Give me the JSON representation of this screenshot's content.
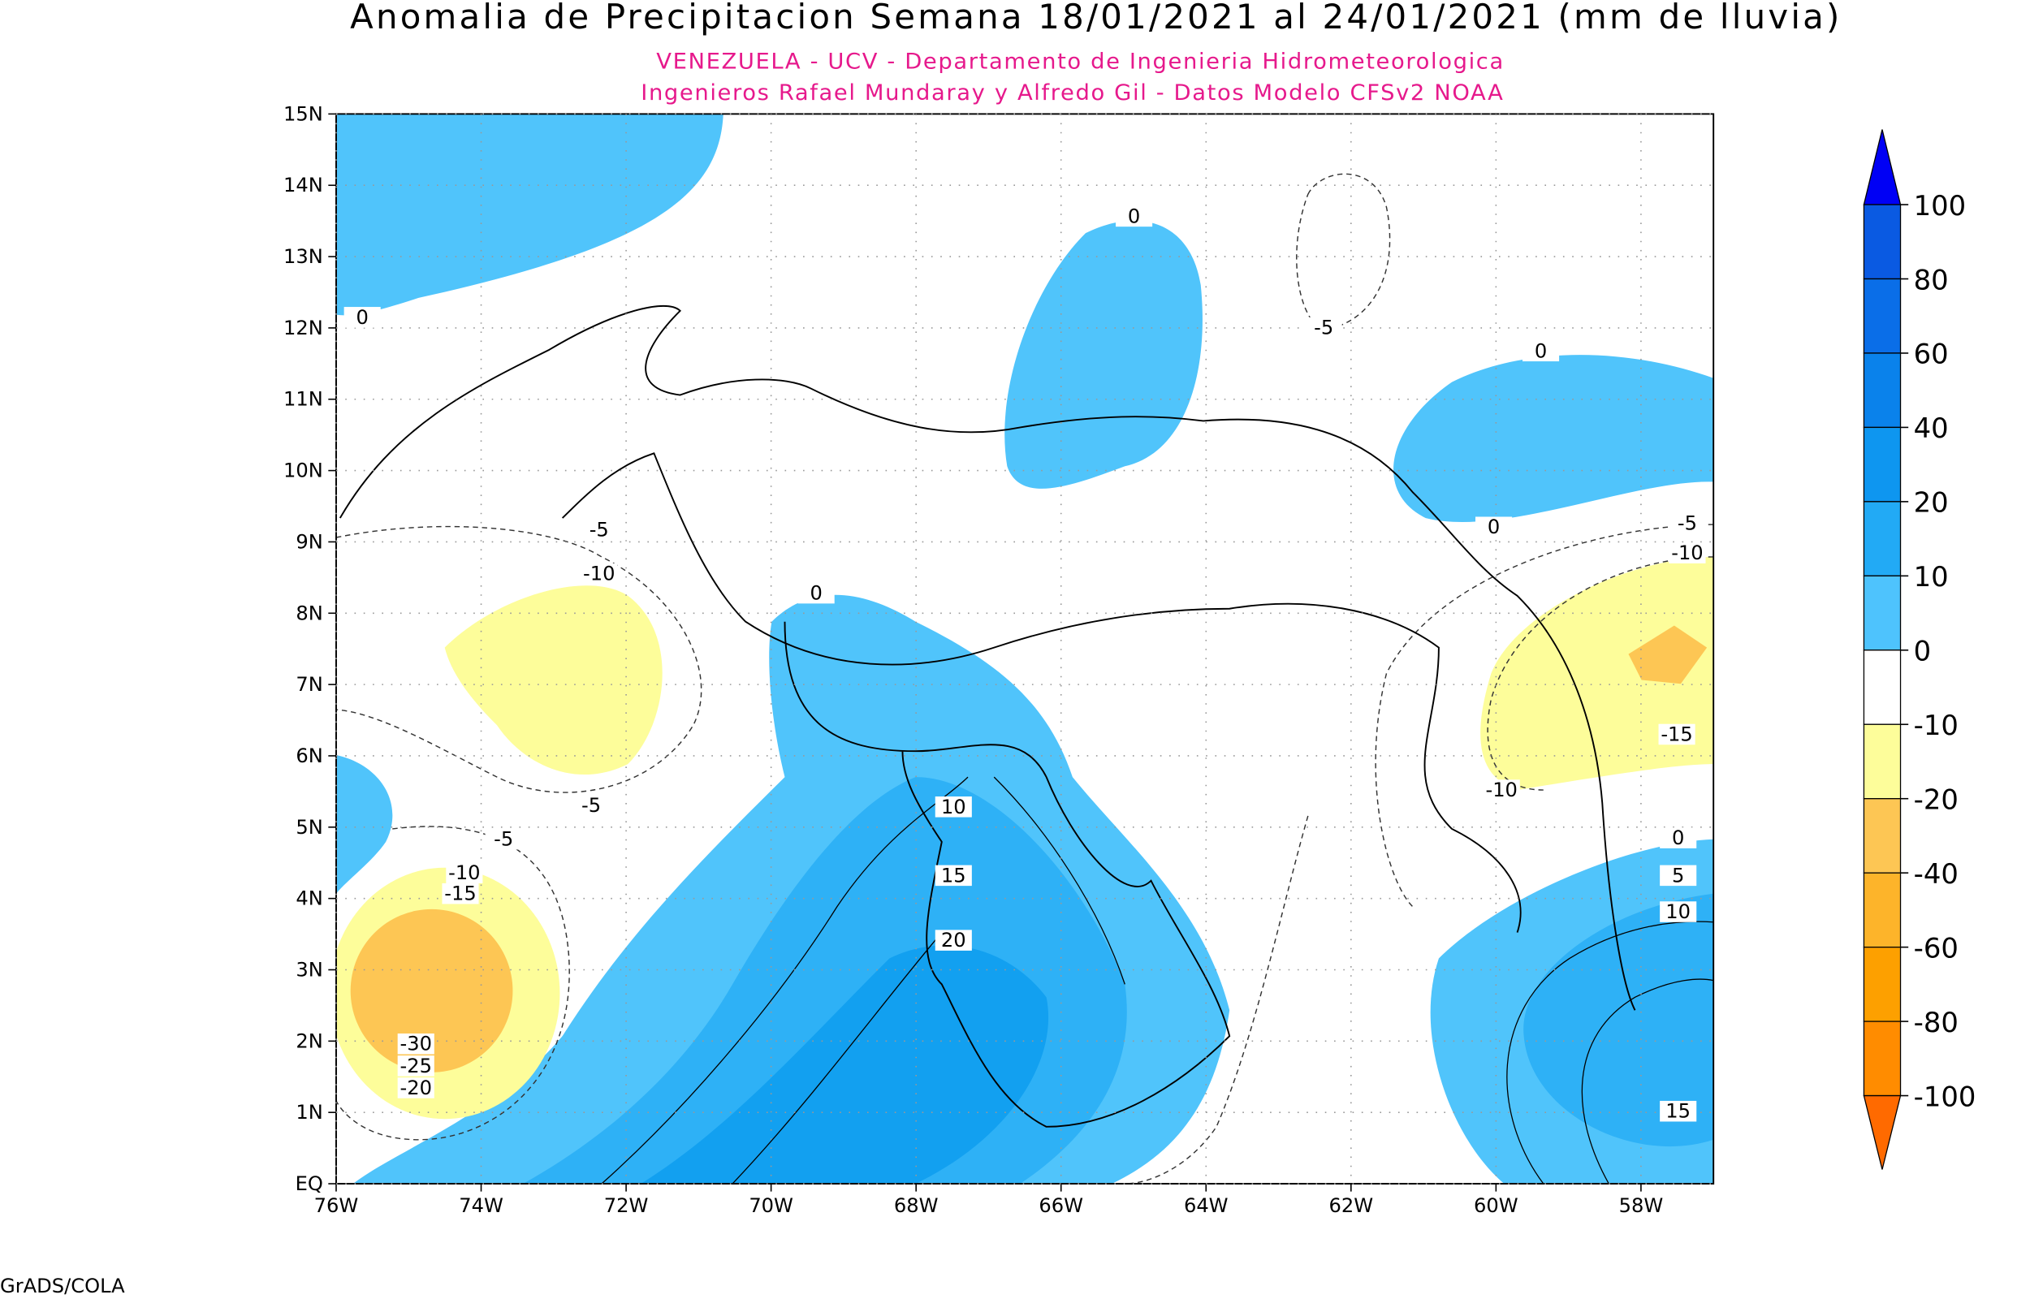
{
  "title": "Anomalia de Precipitacion Semana 18/01/2021 al 24/01/2021 (mm de lluvia)",
  "subtitle": [
    "VENEZUELA - UCV - Departamento de Ingenieria Hidrometeorologica",
    "Ingenieros Rafael Mundaray y Alfredo Gil - Datos Modelo CFSv2 NOAA"
  ],
  "footer": "GrADS/COLA",
  "xlim": [
    -76,
    -57
  ],
  "ylim": [
    0,
    15
  ],
  "xticks": [
    {
      "value": -76,
      "label": "76W"
    },
    {
      "value": -74,
      "label": "74W"
    },
    {
      "value": -72,
      "label": "72W"
    },
    {
      "value": -70,
      "label": "70W"
    },
    {
      "value": -68,
      "label": "68W"
    },
    {
      "value": -66,
      "label": "66W"
    },
    {
      "value": -64,
      "label": "64W"
    },
    {
      "value": -62,
      "label": "62W"
    },
    {
      "value": -60,
      "label": "60W"
    },
    {
      "value": -58,
      "label": "58W"
    }
  ],
  "yticks": [
    {
      "value": 0,
      "label": "EQ"
    },
    {
      "value": 1,
      "label": "1N"
    },
    {
      "value": 2,
      "label": "2N"
    },
    {
      "value": 3,
      "label": "3N"
    },
    {
      "value": 4,
      "label": "4N"
    },
    {
      "value": 5,
      "label": "5N"
    },
    {
      "value": 6,
      "label": "6N"
    },
    {
      "value": 7,
      "label": "7N"
    },
    {
      "value": 8,
      "label": "8N"
    },
    {
      "value": 9,
      "label": "9N"
    },
    {
      "value": 10,
      "label": "10N"
    },
    {
      "value": 11,
      "label": "11N"
    },
    {
      "value": 12,
      "label": "12N"
    },
    {
      "value": 13,
      "label": "13N"
    },
    {
      "value": 14,
      "label": "14N"
    },
    {
      "value": 15,
      "label": "15N"
    }
  ],
  "colorbar": {
    "levels": [
      100,
      80,
      60,
      40,
      20,
      10,
      0,
      -10,
      -20,
      -40,
      -60,
      -80,
      -100
    ],
    "colors": [
      "#0000f5",
      "#0a5ae2",
      "#0a6ee8",
      "#0a82eb",
      "#0e96f0",
      "#22aaf5",
      "#4ec3fd",
      "#ffffff",
      "#fdfd9a",
      "#fdc654",
      "#fdb42a",
      "#fda000",
      "#ff8c00",
      "#ff6a00"
    ]
  },
  "contour_labels": [
    0,
    0,
    0,
    0,
    0,
    -5,
    -10,
    -5,
    -5,
    -10,
    -15,
    -10,
    -5,
    -5,
    -10,
    -15,
    -30,
    -25,
    -20,
    10,
    15,
    20,
    0,
    5,
    10,
    15
  ]
}
